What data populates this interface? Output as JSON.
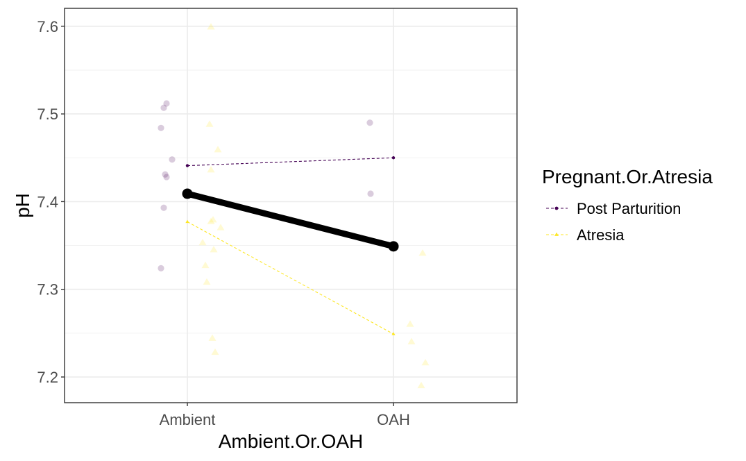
{
  "chart_data": {
    "type": "line",
    "title": "",
    "xlabel": "Ambient.Or.OAH",
    "ylabel": "pH",
    "categories": [
      "Ambient",
      "OAH"
    ],
    "ylim": [
      7.17,
      7.62
    ],
    "yticks": [
      7.2,
      7.3,
      7.4,
      7.5,
      7.6
    ],
    "ytick_labels": [
      "7.2",
      "7.3",
      "7.4",
      "7.5",
      "7.6"
    ],
    "grid": true,
    "legend": {
      "title": "Pregnant.Or.Atresia",
      "placement": "right",
      "entries": [
        "Post Parturition",
        "Atresia"
      ]
    },
    "series": [
      {
        "name": "Post Parturition",
        "color": "#440154",
        "marker": "circle",
        "line_style": "dashed",
        "means": [
          7.441,
          7.45
        ],
        "points": [
          {
            "x": "Ambient",
            "y": 7.512
          },
          {
            "x": "Ambient",
            "y": 7.507
          },
          {
            "x": "Ambient",
            "y": 7.484
          },
          {
            "x": "Ambient",
            "y": 7.448
          },
          {
            "x": "Ambient",
            "y": 7.431
          },
          {
            "x": "Ambient",
            "y": 7.428
          },
          {
            "x": "Ambient",
            "y": 7.393
          },
          {
            "x": "Ambient",
            "y": 7.324
          },
          {
            "x": "OAH",
            "y": 7.49
          },
          {
            "x": "OAH",
            "y": 7.409
          }
        ]
      },
      {
        "name": "Atresia",
        "color": "#FDE725",
        "marker": "triangle",
        "line_style": "dashed",
        "means": [
          7.377,
          7.249
        ],
        "points": [
          {
            "x": "Ambient",
            "y": 7.599
          },
          {
            "x": "Ambient",
            "y": 7.488
          },
          {
            "x": "Ambient",
            "y": 7.459
          },
          {
            "x": "Ambient",
            "y": 7.436
          },
          {
            "x": "Ambient",
            "y": 7.379
          },
          {
            "x": "Ambient",
            "y": 7.377
          },
          {
            "x": "Ambient",
            "y": 7.37
          },
          {
            "x": "Ambient",
            "y": 7.353
          },
          {
            "x": "Ambient",
            "y": 7.345
          },
          {
            "x": "Ambient",
            "y": 7.327
          },
          {
            "x": "Ambient",
            "y": 7.308
          },
          {
            "x": "Ambient",
            "y": 7.244
          },
          {
            "x": "Ambient",
            "y": 7.228
          },
          {
            "x": "OAH",
            "y": 7.341
          },
          {
            "x": "OAH",
            "y": 7.26
          },
          {
            "x": "OAH",
            "y": 7.24
          },
          {
            "x": "OAH",
            "y": 7.216
          },
          {
            "x": "OAH",
            "y": 7.19
          }
        ]
      }
    ],
    "overall_mean": {
      "color": "#000000",
      "values": [
        7.409,
        7.349
      ]
    }
  }
}
